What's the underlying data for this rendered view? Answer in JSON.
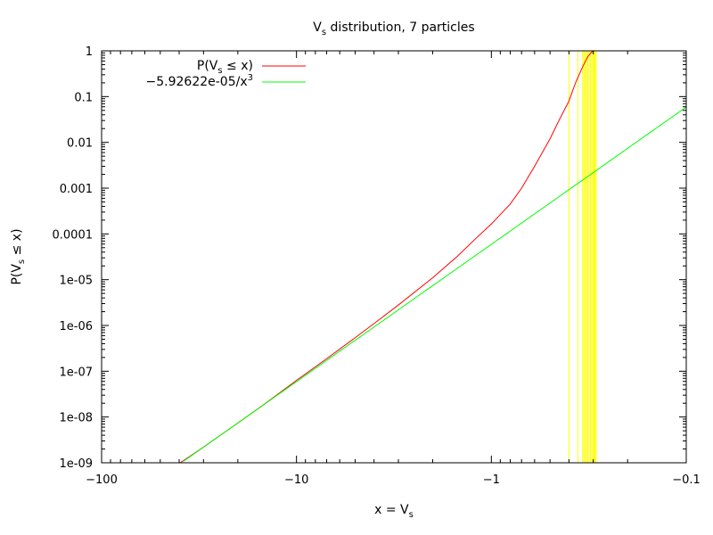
{
  "chart_data": {
    "type": "line",
    "title": {
      "main": "V",
      "sub": "s",
      "rest": " distribution, 7 particles"
    },
    "xlabel": {
      "main": "x = V",
      "sub": "s"
    },
    "ylabel": {
      "pre": "P(V",
      "sub": "s",
      "post": " ≤ x)"
    },
    "x_scale": "log-negative",
    "y_scale": "log",
    "xlim": [
      -100,
      -0.1
    ],
    "ylim": [
      1e-09,
      1
    ],
    "x_ticks": [
      {
        "value": -100,
        "label": "−100"
      },
      {
        "value": -10,
        "label": "−10"
      },
      {
        "value": -1,
        "label": "−1"
      },
      {
        "value": -0.1,
        "label": "−0.1"
      }
    ],
    "y_ticks": [
      {
        "value": 1,
        "label": "1"
      },
      {
        "value": 0.1,
        "label": "0.1"
      },
      {
        "value": 0.01,
        "label": "0.01"
      },
      {
        "value": 0.001,
        "label": "0.001"
      },
      {
        "value": 0.0001,
        "label": "0.0001"
      },
      {
        "value": 1e-05,
        "label": "1e-05"
      },
      {
        "value": 1e-06,
        "label": "1e-06"
      },
      {
        "value": 1e-07,
        "label": "1e-07"
      },
      {
        "value": 1e-08,
        "label": "1e-08"
      },
      {
        "value": 1e-09,
        "label": "1e-09"
      }
    ],
    "legend_position": "top-left",
    "series": [
      {
        "name": {
          "pre": "P(V",
          "sub": "s",
          "post": " ≤ x)"
        },
        "color": "#ff0000",
        "points": [
          [
            -39.5,
            1e-09
          ],
          [
            -30,
            2.2e-09
          ],
          [
            -20,
            7.4e-09
          ],
          [
            -15,
            1.76e-08
          ],
          [
            -10,
            6.3e-08
          ],
          [
            -7,
            1.88e-07
          ],
          [
            -5,
            5.4e-07
          ],
          [
            -4,
            1.1e-06
          ],
          [
            -3,
            2.8e-06
          ],
          [
            -2,
            1.1e-05
          ],
          [
            -1.5,
            3.2e-05
          ],
          [
            -1.2,
            8e-05
          ],
          [
            -1,
            0.000165
          ],
          [
            -0.8,
            0.00045
          ],
          [
            -0.7,
            0.001
          ],
          [
            -0.6,
            0.003
          ],
          [
            -0.5,
            0.012
          ],
          [
            -0.45,
            0.03
          ],
          [
            -0.4,
            0.08
          ],
          [
            -0.37,
            0.2
          ],
          [
            -0.34,
            0.45
          ],
          [
            -0.32,
            0.75
          ],
          [
            -0.305,
            0.95
          ],
          [
            -0.3,
            1
          ]
        ]
      },
      {
        "name": {
          "pre": "−5.92622e-05/x",
          "sup": "3",
          "post": ""
        },
        "color": "#00ff00",
        "coefficient": -5.92622e-05,
        "exponent": 3
      }
    ],
    "vertical_lines": {
      "color": "#ffff00",
      "x": [
        -0.4,
        -0.36,
        -0.34,
        -0.335,
        -0.33,
        -0.325,
        -0.32,
        -0.315,
        -0.31,
        -0.305,
        -0.3,
        -0.297,
        -0.294,
        -0.29
      ]
    }
  }
}
